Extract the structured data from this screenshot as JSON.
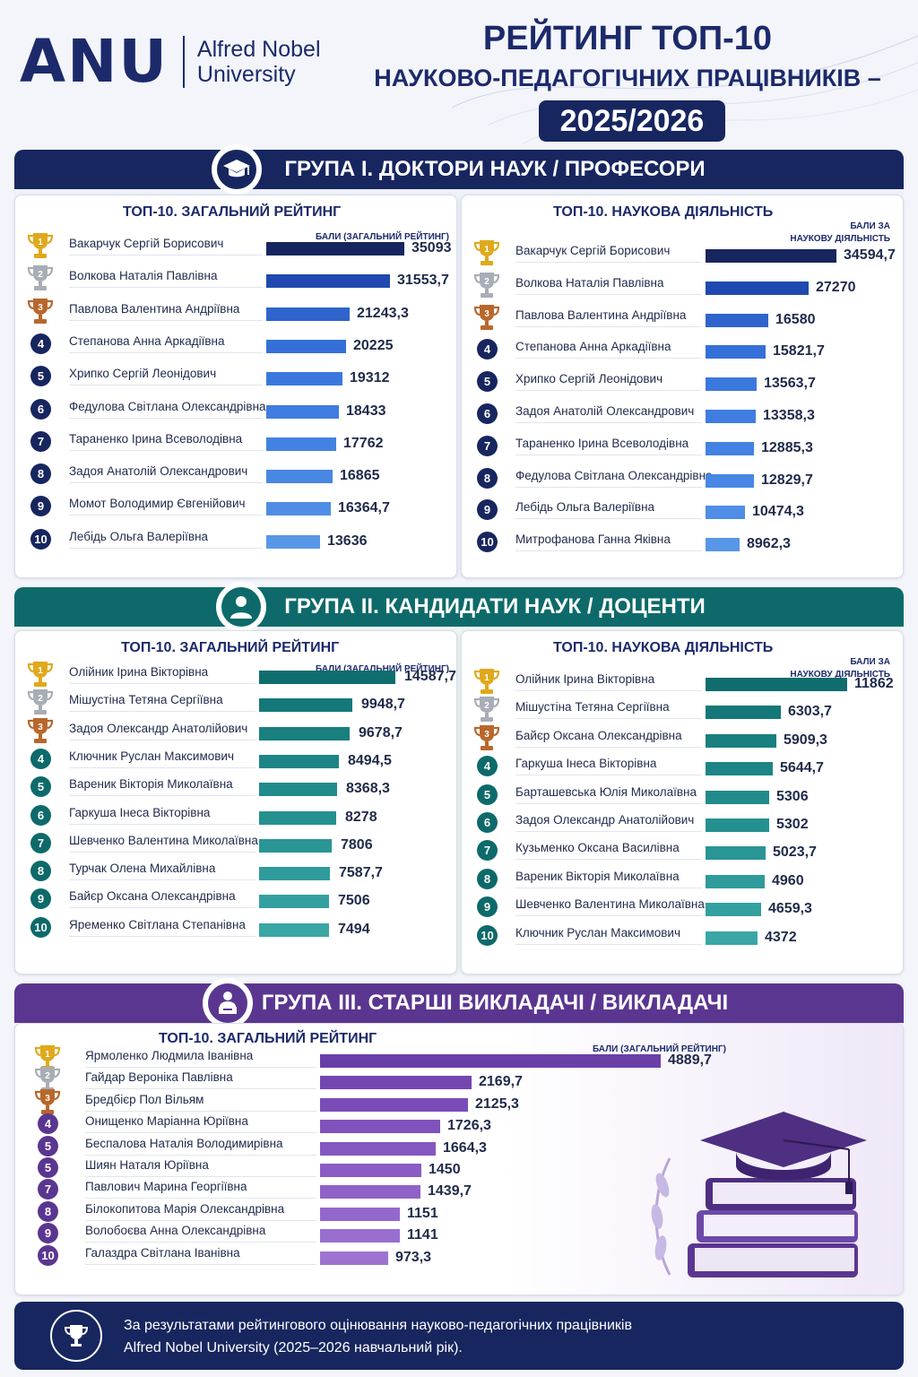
{
  "header": {
    "logo_mark": "ANU",
    "logo_line1": "Alfred Nobel",
    "logo_line2": "University",
    "title_line1": "РЕЙТИНГ ТОП-10",
    "title_line2": "НАУКОВО-ПЕДАГОГІЧНИХ ПРАЦІВНИКІВ –",
    "title_year": "2025/2026"
  },
  "groups": [
    {
      "title": "ГРУПА І. ДОКТОРИ НАУК / ПРОФЕСОРИ",
      "icon": "graduation-cap-icon",
      "color": "#17265f",
      "panels": [
        {
          "title": "ТОП-10. ЗАГАЛЬНИЙ РЕЙТИНГ",
          "points_label_1": "БАЛИ (ЗАГАЛЬНИЙ РЕЙТИНГ)",
          "points_label_2": "",
          "rows": [
            {
              "rank": "1",
              "name": "Вакарчук Сергій Борисович",
              "value": 35093,
              "label": "35093"
            },
            {
              "rank": "2",
              "name": "Волкова Наталія Павлівна",
              "value": 31553.7,
              "label": "31553,7"
            },
            {
              "rank": "3",
              "name": "Павлова Валентина Андріївна",
              "value": 21243.3,
              "label": "21243,3"
            },
            {
              "rank": "4",
              "name": "Степанова Анна Аркадіївна",
              "value": 20225,
              "label": "20225"
            },
            {
              "rank": "5",
              "name": "Хрипко Сергій Леонідович",
              "value": 19312,
              "label": "19312"
            },
            {
              "rank": "6",
              "name": "Федулова Світлана Олександрівна",
              "value": 18433,
              "label": "18433"
            },
            {
              "rank": "7",
              "name": "Тараненко Ірина Всеволодівна",
              "value": 17762,
              "label": "17762"
            },
            {
              "rank": "8",
              "name": "Задоя Анатолій Олександрович",
              "value": 16865,
              "label": "16865"
            },
            {
              "rank": "9",
              "name": "Момот Володимир Євгенійович",
              "value": 16364.7,
              "label": "16364,7"
            },
            {
              "rank": "10",
              "name": "Лебідь Ольга Валеріївна",
              "value": 13636,
              "label": "13636"
            }
          ]
        },
        {
          "title": "ТОП-10. НАУКОВА ДІЯЛЬНІСТЬ",
          "points_label_1": "БАЛИ ЗА",
          "points_label_2": "НАУКОВУ ДІЯЛЬНІСТЬ",
          "rows": [
            {
              "rank": "1",
              "name": "Вакарчук Сергій Борисович",
              "value": 34594.7,
              "label": "34594,7"
            },
            {
              "rank": "2",
              "name": "Волкова Наталія Павлівна",
              "value": 27270,
              "label": "27270"
            },
            {
              "rank": "3",
              "name": "Павлова Валентина Андріївна",
              "value": 16580,
              "label": "16580"
            },
            {
              "rank": "4",
              "name": "Степанова Анна Аркадіївна",
              "value": 15821.7,
              "label": "15821,7"
            },
            {
              "rank": "5",
              "name": "Хрипко Сергій Леонідович",
              "value": 13563.7,
              "label": "13563,7"
            },
            {
              "rank": "6",
              "name": "Задоя Анатолій Олександрович",
              "value": 13358.3,
              "label": "13358,3"
            },
            {
              "rank": "7",
              "name": "Тараненко Ірина Всеволодівна",
              "value": 12885.3,
              "label": "12885,3"
            },
            {
              "rank": "8",
              "name": "Федулова Світлана Олександрівна",
              "value": 12829.7,
              "label": "12829,7"
            },
            {
              "rank": "9",
              "name": "Лебідь Ольга Валеріївна",
              "value": 10474.3,
              "label": "10474,3"
            },
            {
              "rank": "10",
              "name": "Митрофанова Ганна Яківна",
              "value": 8962.3,
              "label": "8962,3"
            }
          ]
        }
      ]
    },
    {
      "title": "ГРУПА ІІ. КАНДИДАТИ НАУК / ДОЦЕНТИ",
      "icon": "person-icon",
      "color": "#0e6a6a",
      "panels": [
        {
          "title": "ТОП-10. ЗАГАЛЬНИЙ РЕЙТИНГ",
          "points_label_1": "БАЛИ (ЗАГАЛЬНИЙ РЕЙТИНГ)",
          "points_label_2": "",
          "rows": [
            {
              "rank": "1",
              "name": "Олійник Ірина Вікторівна",
              "value": 14587.7,
              "label": "14587,7"
            },
            {
              "rank": "2",
              "name": "Мішустіна Тетяна Сергіївна",
              "value": 9948.7,
              "label": "9948,7"
            },
            {
              "rank": "3",
              "name": "Задоя Олександр Анатолійович",
              "value": 9678.7,
              "label": "9678,7"
            },
            {
              "rank": "4",
              "name": "Ключник Руслан Максимович",
              "value": 8494.5,
              "label": "8494,5"
            },
            {
              "rank": "5",
              "name": "Вареник Вікторія Миколаївна",
              "value": 8368.3,
              "label": "8368,3"
            },
            {
              "rank": "6",
              "name": "Гаркуша Інеса Вікторівна",
              "value": 8278,
              "label": "8278"
            },
            {
              "rank": "7",
              "name": "Шевченко Валентина Миколаївна",
              "value": 7806,
              "label": "7806"
            },
            {
              "rank": "8",
              "name": "Турчак Олена Михайлівна",
              "value": 7587.7,
              "label": "7587,7"
            },
            {
              "rank": "9",
              "name": "Байєр Оксана Олександрівна",
              "value": 7506,
              "label": "7506"
            },
            {
              "rank": "10",
              "name": "Яременко Світлана Степанівна",
              "value": 7494,
              "label": "7494"
            }
          ]
        },
        {
          "title": "ТОП-10. НАУКОВА ДІЯЛЬНІСТЬ",
          "points_label_1": "БАЛИ ЗА",
          "points_label_2": "НАУКОВУ ДІЯЛЬНІСТЬ",
          "rows": [
            {
              "rank": "1",
              "name": "Олійник Ірина Вікторівна",
              "value": 11862,
              "label": "11862"
            },
            {
              "rank": "2",
              "name": "Мішустіна Тетяна Сергіївна",
              "value": 6303.7,
              "label": "6303,7"
            },
            {
              "rank": "3",
              "name": "Байєр Оксана Олександрівна",
              "value": 5909.3,
              "label": "5909,3"
            },
            {
              "rank": "4",
              "name": "Гаркуша Інеса Вікторівна",
              "value": 5644.7,
              "label": "5644,7"
            },
            {
              "rank": "5",
              "name": "Барташевська Юлія Миколаївна",
              "value": 5306,
              "label": "5306"
            },
            {
              "rank": "6",
              "name": "Задоя Олександр Анатолійович",
              "value": 5302,
              "label": "5302"
            },
            {
              "rank": "7",
              "name": "Кузьменко Оксана Василівна",
              "value": 5023.7,
              "label": "5023,7"
            },
            {
              "rank": "8",
              "name": "Вареник Вікторія Миколаївна",
              "value": 4960,
              "label": "4960"
            },
            {
              "rank": "9",
              "name": "Шевченко Валентина Миколаївна",
              "value": 4659.3,
              "label": "4659,3"
            },
            {
              "rank": "10",
              "name": "Ключник Руслан Максимович",
              "value": 4372,
              "label": "4372"
            }
          ]
        }
      ]
    },
    {
      "title": "ГРУПА ІІІ. СТАРШІ ВИКЛАДАЧІ / ВИКЛАДАЧІ",
      "icon": "lecturer-icon",
      "color": "#5b3690",
      "panels": [
        {
          "title": "ТОП-10. ЗАГАЛЬНИЙ РЕЙТИНГ",
          "points_label_1": "БАЛИ (ЗАГАЛЬНИЙ РЕЙТИНГ)",
          "points_label_2": "",
          "rows": [
            {
              "rank": "1",
              "name": "Ярмоленко Людмила Іванівна",
              "value": 4889.7,
              "label": "4889,7"
            },
            {
              "rank": "2",
              "name": "Гайдар Вероніка Павлівна",
              "value": 2169.7,
              "label": "2169,7"
            },
            {
              "rank": "3",
              "name": "Бредбієр Пол Вільям",
              "value": 2125.3,
              "label": "2125,3"
            },
            {
              "rank": "4",
              "name": "Онищенко Маріанна Юріївна",
              "value": 1726.3,
              "label": "1726,3"
            },
            {
              "rank": "5",
              "name": "Беспалова Наталія Володимирівна",
              "value": 1664.3,
              "label": "1664,3"
            },
            {
              "rank": "5",
              "name": "Шиян Наталя Юріївна",
              "value": 1450,
              "label": "1450"
            },
            {
              "rank": "7",
              "name": "Павлович Марина Георгіївна",
              "value": 1439.7,
              "label": "1439,7"
            },
            {
              "rank": "8",
              "name": "Білокопитова Марія Олександрівна",
              "value": 1151,
              "label": "1151"
            },
            {
              "rank": "9",
              "name": "Волобоєва Анна Олександрівна",
              "value": 1141,
              "label": "1141"
            },
            {
              "rank": "10",
              "name": "Галаздра Світлана Іванівна",
              "value": 973.3,
              "label": "973,3"
            }
          ]
        }
      ]
    }
  ],
  "footer": {
    "icon": "trophy-icon",
    "line1": "За результатами рейтингового оцінювання науково-педагогічних працівників",
    "line2": "Alfred Nobel University (2025–2026 навчальний рік)."
  },
  "colors": {
    "navy": "#17265f",
    "teal": "#0e6a6a",
    "purple": "#5b3690",
    "gold": "#e0a91c",
    "silver": "#a8adb6",
    "bronze": "#b8672c"
  }
}
